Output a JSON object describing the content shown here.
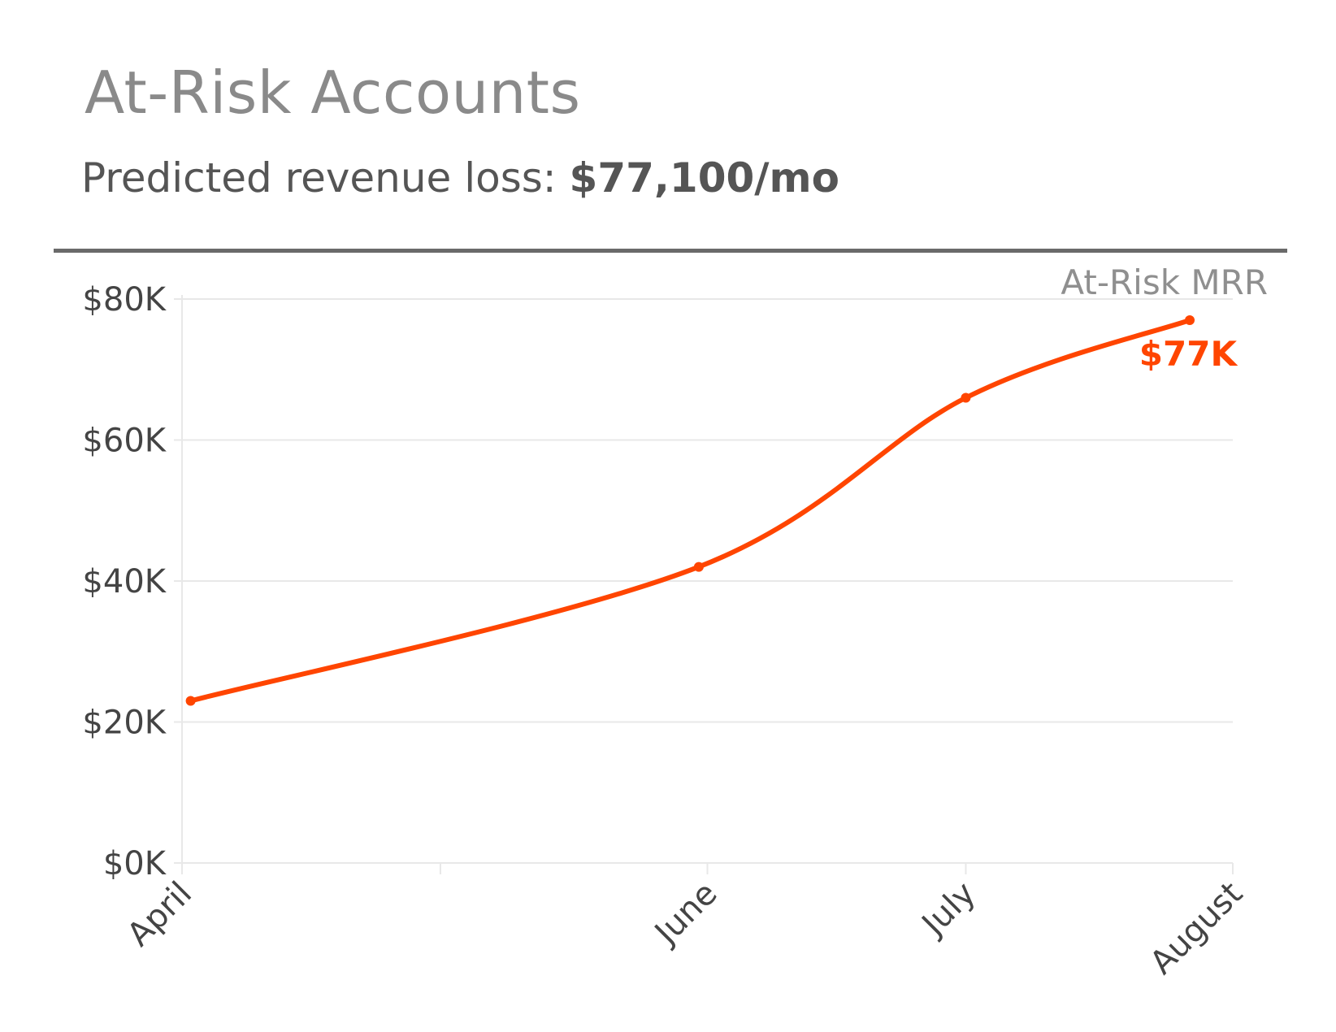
{
  "header": {
    "title": "At-Risk Accounts",
    "subtitle_prefix": "Predicted revenue loss: ",
    "subtitle_value": "$77,100/mo"
  },
  "colors": {
    "line": "#ff4500",
    "grid": "#e8e8e8",
    "title": "#8a8a8a",
    "divider": "#6a6a6a"
  },
  "chart_data": {
    "type": "line",
    "title": "",
    "xlabel": "",
    "ylabel": "",
    "ylim": [
      0,
      80000
    ],
    "y_ticks": [
      {
        "value": 0,
        "label": "$0K"
      },
      {
        "value": 20000,
        "label": "$20K"
      },
      {
        "value": 40000,
        "label": "$40K"
      },
      {
        "value": 60000,
        "label": "$60K"
      },
      {
        "value": 80000,
        "label": "$80K"
      }
    ],
    "x_axis": {
      "type": "time",
      "min": "2024-04-01",
      "max": "2024-08-01",
      "ticks": [
        {
          "date": "2024-04-01",
          "label": "April"
        },
        {
          "date": "2024-05-01",
          "label": ""
        },
        {
          "date": "2024-06-01",
          "label": "June"
        },
        {
          "date": "2024-07-01",
          "label": "July"
        },
        {
          "date": "2024-08-01",
          "label": "August"
        }
      ]
    },
    "grid": true,
    "series": [
      {
        "name": "At-Risk MRR",
        "color": "#ff4500",
        "points": [
          {
            "x": "2024-04-02",
            "y": 23000
          },
          {
            "x": "2024-05-31",
            "y": 42000
          },
          {
            "x": "2024-07-01",
            "y": 66000
          },
          {
            "x": "2024-07-27",
            "y": 77000
          }
        ],
        "end_label": "$77K"
      }
    ]
  }
}
